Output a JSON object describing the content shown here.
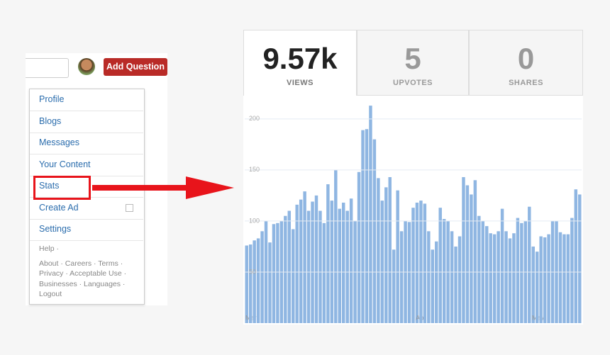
{
  "topbar": {
    "button": "Add Question"
  },
  "menu": {
    "items": [
      "Profile",
      "Blogs",
      "Messages",
      "Your Content",
      "Stats",
      "Create Ad",
      "Settings"
    ],
    "footer": [
      "Help ·",
      "About · Careers · Terms ·",
      "Privacy · Acceptable Use ·",
      "Businesses · Languages ·",
      "Logout"
    ]
  },
  "stats": {
    "tabs": [
      {
        "value": "9.57k",
        "label": "VIEWS"
      },
      {
        "value": "5",
        "label": "UPVOTES"
      },
      {
        "value": "0",
        "label": "SHARES"
      }
    ]
  },
  "chart_data": {
    "type": "bar",
    "color": "#8fb6e2",
    "categories": [
      "Mar",
      null,
      null,
      null,
      null,
      null,
      null,
      null,
      null,
      null,
      null,
      null,
      null,
      null,
      null,
      null,
      null,
      null,
      null,
      null,
      null,
      null,
      null,
      null,
      null,
      null,
      null,
      null,
      null,
      null,
      null,
      null,
      null,
      null,
      null,
      null,
      null,
      null,
      null,
      null,
      null,
      null,
      null,
      null,
      "Apr",
      null,
      null,
      null,
      null,
      null,
      null,
      null,
      null,
      null,
      null,
      null,
      null,
      null,
      null,
      null,
      null,
      null,
      null,
      null,
      null,
      null,
      null,
      null,
      null,
      null,
      null,
      null,
      null,
      null,
      "May",
      null,
      null,
      null,
      null,
      null,
      null,
      null,
      null,
      null,
      null,
      null,
      null
    ],
    "values": [
      76,
      77,
      81,
      83,
      90,
      100,
      79,
      97,
      98,
      100,
      105,
      110,
      92,
      116,
      121,
      129,
      110,
      119,
      125,
      110,
      98,
      136,
      120,
      150,
      112,
      118,
      110,
      122,
      100,
      148,
      189,
      190,
      213,
      180,
      142,
      120,
      133,
      143,
      72,
      130,
      90,
      100,
      99,
      113,
      118,
      120,
      117,
      90,
      72,
      80,
      113,
      102,
      100,
      90,
      75,
      85,
      143,
      135,
      126,
      140,
      105,
      100,
      95,
      88,
      87,
      90,
      112,
      90,
      83,
      88,
      103,
      98,
      100,
      114,
      75,
      70,
      85,
      84,
      87,
      100,
      100,
      89,
      87,
      87,
      103,
      131,
      126
    ],
    "ylim": [
      0,
      220
    ],
    "yticks": [
      50,
      100,
      150,
      200
    ],
    "grid": true
  }
}
